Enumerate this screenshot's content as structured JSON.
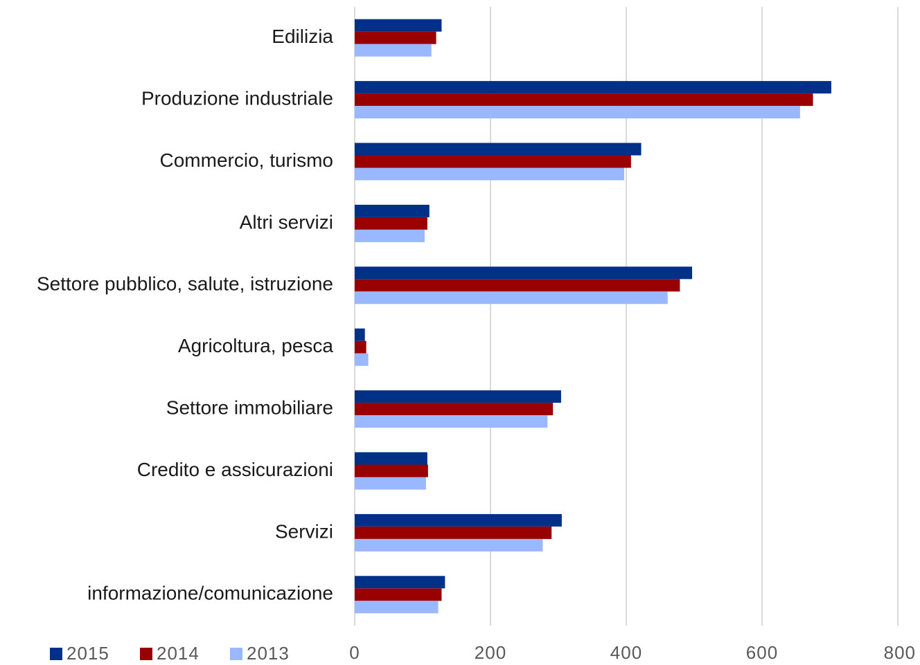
{
  "chart_data": {
    "type": "bar",
    "orientation": "horizontal",
    "categories": [
      "Edilizia",
      "Produzione industriale",
      "Commercio, turismo",
      "Altri servizi",
      "Settore pubblico, salute, istruzione",
      "Agricoltura, pesca",
      "Settore immobiliare",
      "Credito e assicurazioni",
      "Servizi",
      "informazione/comunicazione"
    ],
    "series": [
      {
        "name": "2015",
        "color": "#003087",
        "values": [
          128,
          702,
          422,
          110,
          497,
          15,
          304,
          107,
          305,
          133
        ]
      },
      {
        "name": "2014",
        "color": "#990000",
        "values": [
          120,
          675,
          407,
          107,
          479,
          17,
          292,
          108,
          290,
          128
        ]
      },
      {
        "name": "2013",
        "color": "#99b8ff",
        "values": [
          113,
          656,
          397,
          103,
          461,
          20,
          284,
          105,
          277,
          123
        ]
      }
    ],
    "xlim": [
      0,
      800
    ],
    "xticks": [
      "0",
      "200",
      "400",
      "600",
      "800"
    ],
    "grid": "vertical",
    "legend_position": "bottom-left"
  }
}
